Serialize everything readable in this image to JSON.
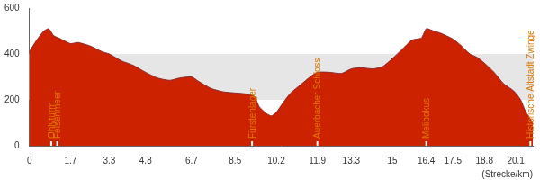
{
  "chart_data": {
    "type": "area",
    "x_label": "(Strecke/km)",
    "x": [
      0,
      0.3,
      0.6,
      0.8,
      1.0,
      1.3,
      1.7,
      2.0,
      2.5,
      3.0,
      3.3,
      3.8,
      4.3,
      4.8,
      5.3,
      5.8,
      6.2,
      6.7,
      7.0,
      7.5,
      8.0,
      8.5,
      9.0,
      9.3,
      9.5,
      9.8,
      10.0,
      10.2,
      10.5,
      10.8,
      11.2,
      11.6,
      11.9,
      12.4,
      12.9,
      13.3,
      13.7,
      14.2,
      14.6,
      15.0,
      15.4,
      15.8,
      16.2,
      16.4,
      16.7,
      17.0,
      17.5,
      17.8,
      18.2,
      18.5,
      18.8,
      19.2,
      19.6,
      20.0,
      20.3,
      20.5,
      20.8
    ],
    "values": [
      410,
      460,
      500,
      510,
      480,
      465,
      445,
      450,
      435,
      410,
      400,
      370,
      350,
      320,
      295,
      285,
      295,
      300,
      280,
      250,
      235,
      230,
      225,
      215,
      170,
      140,
      130,
      145,
      190,
      230,
      265,
      300,
      320,
      320,
      315,
      335,
      340,
      335,
      345,
      380,
      420,
      460,
      470,
      510,
      500,
      490,
      465,
      440,
      400,
      385,
      360,
      320,
      270,
      240,
      200,
      150,
      100
    ],
    "color": "#cc2200",
    "xlim": [
      0,
      20.8
    ],
    "xticks": [
      0,
      1.7,
      3.3,
      4.8,
      6.7,
      8.5,
      10.2,
      11.9,
      13.3,
      15,
      16.4,
      17.5,
      18.8,
      20.1
    ],
    "ylim": [
      0,
      600
    ],
    "yticks": [
      0,
      200,
      400,
      600
    ],
    "grid": true,
    "annotations": [
      {
        "x": 0.9,
        "label": "Ohlyturm"
      },
      {
        "x": 1.15,
        "label": "Felsenmeer"
      },
      {
        "x": 9.2,
        "label": "Fürstenlager"
      },
      {
        "x": 11.9,
        "label": "Auerbacher Schloss"
      },
      {
        "x": 16.4,
        "label": "Melibokus"
      },
      {
        "x": 20.7,
        "label": "Historische Altstadt Zwinge"
      }
    ]
  }
}
